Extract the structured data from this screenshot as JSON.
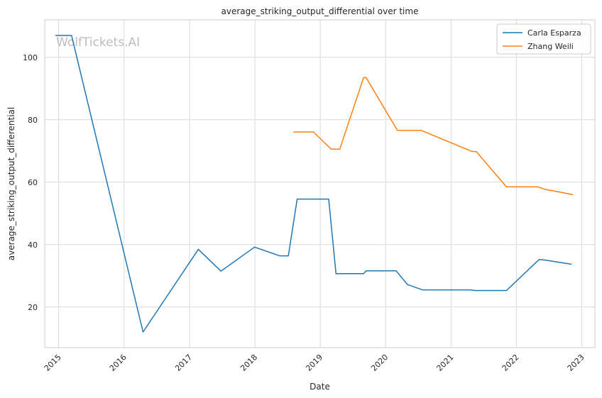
{
  "chart_data": {
    "type": "line",
    "title": "average_striking_output_differential over time",
    "xlabel": "Date",
    "ylabel": "average_striking_output_differential",
    "watermark": "WolfTickets.AI",
    "x_ticks": [
      "2015",
      "2016",
      "2017",
      "2018",
      "2019",
      "2020",
      "2021",
      "2022",
      "2023"
    ],
    "y_ticks": [
      "20",
      "40",
      "60",
      "80",
      "100"
    ],
    "ylim": [
      7,
      112
    ],
    "grid": true,
    "legend_position": "top-right",
    "series": [
      {
        "name": "Carla Esparza",
        "color": "#1f77b4",
        "points": [
          [
            "2014-12-13",
            107
          ],
          [
            "2015-03-14",
            107
          ],
          [
            "2016-04-16",
            12
          ],
          [
            "2017-02-19",
            38.5
          ],
          [
            "2017-06-25",
            31.5
          ],
          [
            "2017-12-30",
            39.2
          ],
          [
            "2018-05-19",
            36.4
          ],
          [
            "2018-07-07",
            36.4
          ],
          [
            "2018-08-25",
            54.6
          ],
          [
            "2019-02-17",
            54.6
          ],
          [
            "2019-03-30",
            30.7
          ],
          [
            "2019-08-31",
            30.7
          ],
          [
            "2019-09-14",
            31.6
          ],
          [
            "2020-02-29",
            31.6
          ],
          [
            "2020-05-02",
            27.2
          ],
          [
            "2020-07-25",
            25.5
          ],
          [
            "2021-04-17",
            25.5
          ],
          [
            "2021-05-15",
            25.3
          ],
          [
            "2021-11-06",
            25.3
          ],
          [
            "2022-05-07",
            35.2
          ],
          [
            "2022-06-04",
            35.1
          ],
          [
            "2022-11-05",
            33.7
          ]
        ]
      },
      {
        "name": "Zhang Weili",
        "color": "#ff7f0e",
        "points": [
          [
            "2018-08-04",
            76.1
          ],
          [
            "2018-11-24",
            76.1
          ],
          [
            "2019-03-03",
            70.6
          ],
          [
            "2019-04-20",
            70.6
          ],
          [
            "2019-08-31",
            93.5
          ],
          [
            "2019-09-14",
            93.5
          ],
          [
            "2020-03-07",
            76.6
          ],
          [
            "2020-07-18",
            76.6
          ],
          [
            "2021-04-24",
            69.9
          ],
          [
            "2021-05-22",
            69.8
          ],
          [
            "2021-11-06",
            58.5
          ],
          [
            "2022-04-30",
            58.5
          ],
          [
            "2022-06-11",
            57.7
          ],
          [
            "2022-11-12",
            56.0
          ]
        ]
      }
    ]
  }
}
